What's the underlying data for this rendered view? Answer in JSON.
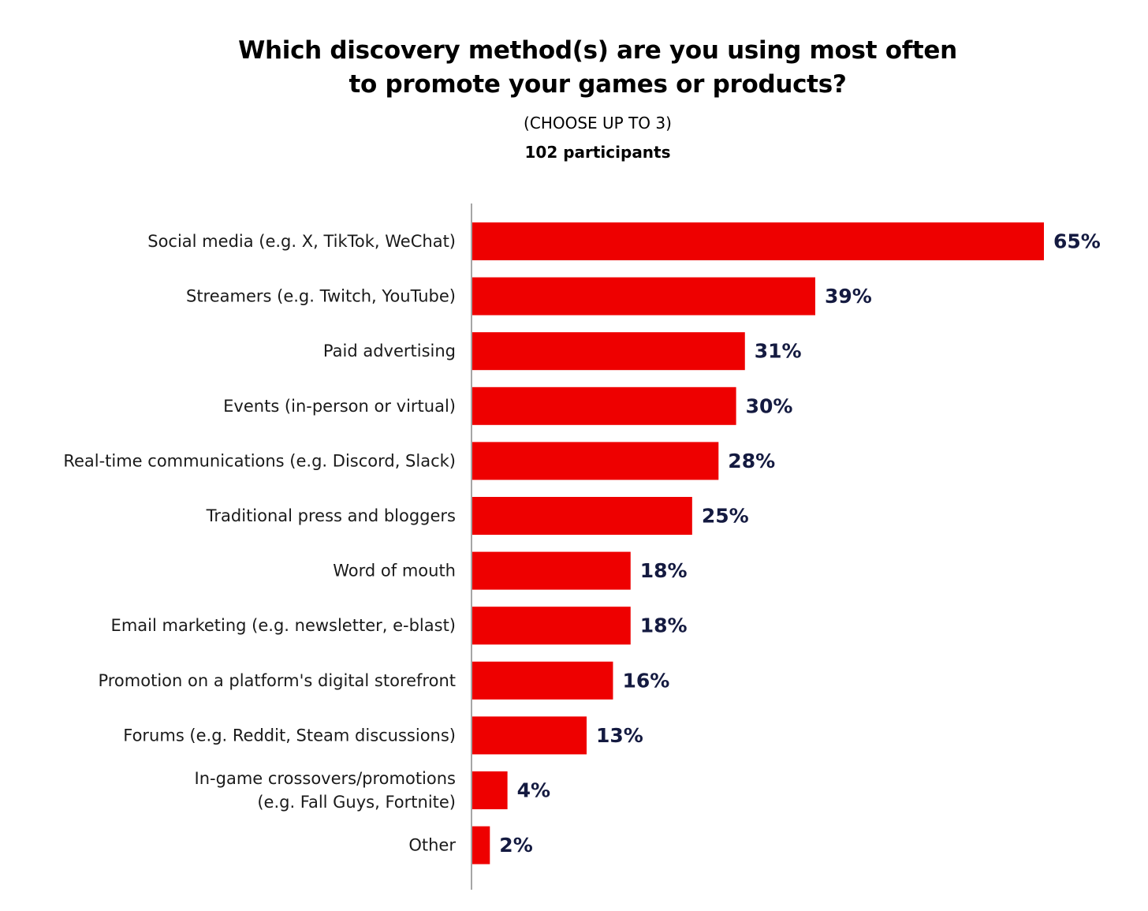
{
  "chart_data": {
    "type": "bar",
    "orientation": "horizontal",
    "title_lines": [
      "Which discovery method(s) are you using most often",
      "to promote your games or products?"
    ],
    "subtitle": "(CHOOSE UP TO 3)",
    "participants": "102 participants",
    "categories": [
      [
        "Social media (e.g. X, TikTok, WeChat)"
      ],
      [
        "Streamers (e.g. Twitch, YouTube)"
      ],
      [
        "Paid advertising"
      ],
      [
        "Events (in-person or virtual)"
      ],
      [
        "Real-time communications (e.g. Discord, Slack)"
      ],
      [
        "Traditional press and bloggers"
      ],
      [
        "Word of mouth"
      ],
      [
        "Email marketing (e.g. newsletter, e-blast)"
      ],
      [
        "Promotion on a platform's digital storefront"
      ],
      [
        "Forums (e.g. Reddit, Steam discussions)"
      ],
      [
        "In-game crossovers/promotions",
        "(e.g. Fall Guys, Fortnite)"
      ],
      [
        "Other"
      ]
    ],
    "values": [
      65,
      39,
      31,
      30,
      28,
      25,
      18,
      18,
      16,
      13,
      4,
      2
    ],
    "value_labels": [
      "65%",
      "39%",
      "31%",
      "30%",
      "28%",
      "25%",
      "18%",
      "18%",
      "16%",
      "13%",
      "4%",
      "2%"
    ],
    "unit": "%",
    "xlim": [
      0,
      65
    ],
    "colors": {
      "bar": "#ee0000",
      "value_text": "#141a40",
      "axis": "#888888"
    },
    "grid": false,
    "legend": "none"
  }
}
